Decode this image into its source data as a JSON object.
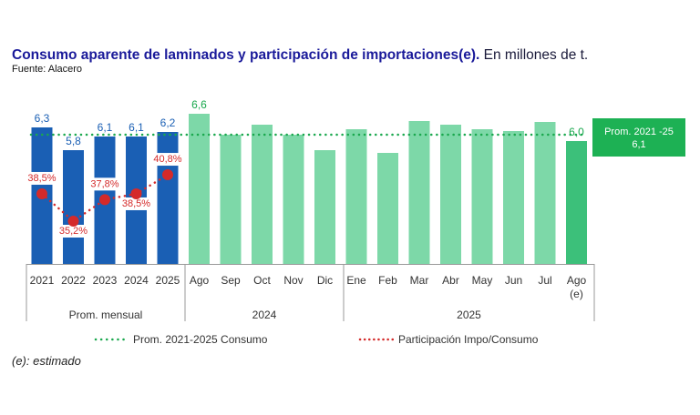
{
  "chart_data": {
    "type": "bar",
    "title": "Consumo aparente de laminados y participación de importaciones(e).",
    "title_suffix": "En millones de t.",
    "source": "Fuente: Alacero",
    "footnote": "(e): estimado",
    "categories": [
      "2021",
      "2022",
      "2023",
      "2024",
      "2025",
      "Ago",
      "Sep",
      "Oct",
      "Nov",
      "Dic",
      "Ene",
      "Feb",
      "Mar",
      "Abr",
      "May",
      "Jun",
      "Jul",
      "Ago"
    ],
    "category_sublabels": {
      "17": "(e)"
    },
    "groups": [
      {
        "label": "Prom. mensual",
        "from": 0,
        "to": 4
      },
      {
        "label": "2024",
        "from": 5,
        "to": 9
      },
      {
        "label": "2025",
        "from": 10,
        "to": 17
      }
    ],
    "consumo": [
      6.3,
      5.8,
      6.1,
      6.1,
      6.2,
      6.6,
      6.14,
      6.36,
      6.14,
      5.8,
      6.26,
      5.74,
      6.44,
      6.36,
      6.26,
      6.22,
      6.42,
      6.0
    ],
    "consumo_labels": {
      "0": "6,3",
      "1": "5,8",
      "2": "6,1",
      "3": "6,1",
      "4": "6,2",
      "5": "6,6",
      "17": "6,0"
    },
    "participacion": {
      "name": "Participación Impo/Consumo",
      "values": [
        38.5,
        35.2,
        37.8,
        38.5,
        40.8
      ],
      "labels": [
        "38,5%",
        "35,2%",
        "37,8%",
        "38,5%",
        "40,8%"
      ]
    },
    "promedio": {
      "name": "Prom. 2021-2025 Consumo",
      "value": 6.1,
      "box_label": "Prom. 2021 -25",
      "box_value": "6,1"
    },
    "grid": false,
    "legend": "bottom",
    "colors": {
      "annual": "#1a5fb4",
      "monthly": "#7dd8a8",
      "estimate": "#3cc07a",
      "avg_line": "#1aa84e",
      "pct": "#d42a2a",
      "box": "#1db154",
      "title": "#1a1a9a"
    }
  }
}
